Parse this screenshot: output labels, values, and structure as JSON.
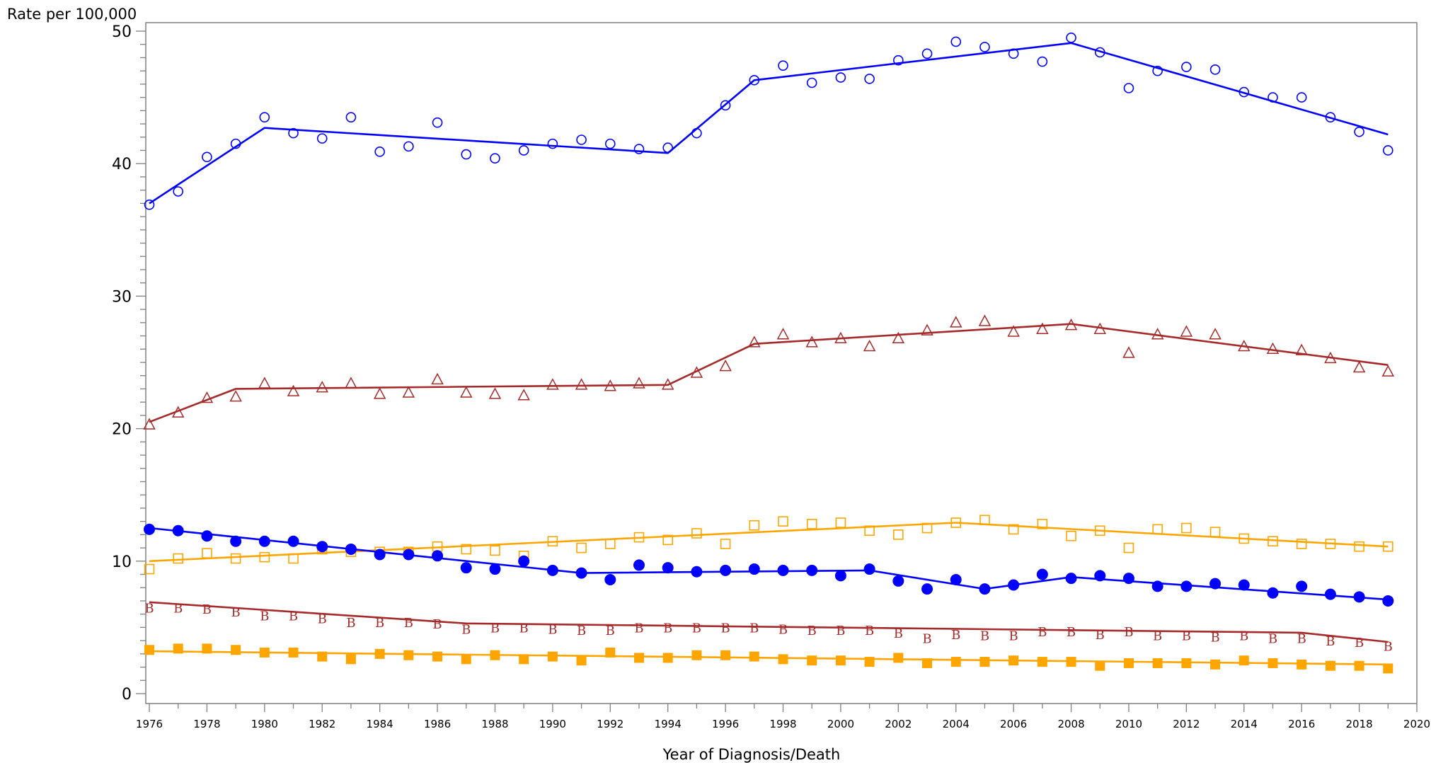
{
  "chart_data": {
    "type": "line",
    "title": "",
    "ylabel": "Rate per 100,000",
    "xlabel": "Year of Diagnosis/Death",
    "xlim": [
      1976,
      2020
    ],
    "ylim": [
      0,
      50
    ],
    "x_ticks": [
      1976,
      1978,
      1980,
      1982,
      1984,
      1986,
      1988,
      1990,
      1992,
      1994,
      1996,
      1998,
      2000,
      2002,
      2004,
      2006,
      2008,
      2010,
      2012,
      2014,
      2016,
      2018,
      2020
    ],
    "y_ticks": [
      0,
      10,
      20,
      30,
      40,
      50
    ],
    "x": [
      1976,
      1977,
      1978,
      1979,
      1980,
      1981,
      1982,
      1983,
      1984,
      1985,
      1986,
      1987,
      1988,
      1989,
      1990,
      1991,
      1992,
      1993,
      1994,
      1995,
      1996,
      1997,
      1998,
      1999,
      2000,
      2001,
      2002,
      2003,
      2004,
      2005,
      2006,
      2007,
      2008,
      2009,
      2010,
      2011,
      2012,
      2013,
      2014,
      2015,
      2016,
      2017,
      2018,
      2019
    ],
    "grid": false,
    "legend": "none",
    "series": [
      {
        "color": "#0000ff",
        "marker": "circle-open",
        "observed": [
          36.9,
          37.9,
          40.5,
          41.5,
          43.5,
          42.3,
          41.9,
          43.5,
          40.9,
          41.3,
          43.1,
          40.7,
          40.4,
          41.0,
          41.5,
          41.8,
          41.5,
          41.1,
          41.2,
          42.3,
          44.4,
          46.3,
          47.4,
          46.1,
          46.5,
          46.4,
          47.8,
          48.3,
          49.2,
          48.8,
          48.3,
          47.7,
          49.5,
          48.4,
          45.7,
          47.0,
          47.3,
          47.1,
          45.4,
          45.0,
          45.0,
          43.5,
          42.4,
          41.0
        ],
        "trend": [
          [
            1976,
            37.0
          ],
          [
            1980,
            42.7
          ],
          [
            1994,
            40.8
          ],
          [
            1997,
            46.3
          ],
          [
            2008,
            49.1
          ],
          [
            2019,
            42.2
          ]
        ]
      },
      {
        "color": "#a52a2a",
        "marker": "triangle-open",
        "observed": [
          20.3,
          21.2,
          22.3,
          22.4,
          23.4,
          22.8,
          23.1,
          23.4,
          22.6,
          22.7,
          23.7,
          22.7,
          22.6,
          22.5,
          23.3,
          23.3,
          23.2,
          23.4,
          23.3,
          24.2,
          24.7,
          26.5,
          27.1,
          26.5,
          26.8,
          26.2,
          26.8,
          27.4,
          28.0,
          28.1,
          27.3,
          27.5,
          27.8,
          27.5,
          25.7,
          27.1,
          27.3,
          27.1,
          26.2,
          26.0,
          25.9,
          25.3,
          24.6,
          24.3
        ],
        "trend": [
          [
            1976,
            20.5
          ],
          [
            1979,
            23.0
          ],
          [
            1994,
            23.3
          ],
          [
            1997,
            26.4
          ],
          [
            2008,
            27.9
          ],
          [
            2019,
            24.8
          ]
        ]
      },
      {
        "color": "#ffa500",
        "marker": "square-open",
        "observed": [
          9.4,
          10.2,
          10.6,
          10.2,
          10.3,
          10.2,
          10.9,
          10.7,
          10.7,
          10.7,
          11.1,
          10.9,
          10.8,
          10.4,
          11.5,
          11.0,
          11.3,
          11.8,
          11.6,
          12.1,
          11.3,
          12.7,
          13.0,
          12.8,
          12.9,
          12.3,
          12.0,
          12.5,
          12.9,
          13.1,
          12.4,
          12.8,
          11.9,
          12.3,
          11.0,
          12.4,
          12.5,
          12.2,
          11.7,
          11.5,
          11.3,
          11.3,
          11.1,
          11.1
        ],
        "trend": [
          [
            1976,
            10.0
          ],
          [
            2004,
            12.9
          ],
          [
            2019,
            11.1
          ]
        ]
      },
      {
        "color": "#0000ff",
        "marker": "circle-filled",
        "observed": [
          12.4,
          12.3,
          11.9,
          11.5,
          11.5,
          11.5,
          11.1,
          10.9,
          10.5,
          10.5,
          10.4,
          9.5,
          9.4,
          10.0,
          9.3,
          9.1,
          8.6,
          9.7,
          9.5,
          9.2,
          9.3,
          9.4,
          9.3,
          9.3,
          8.9,
          9.4,
          8.5,
          7.9,
          8.6,
          7.9,
          8.2,
          9.0,
          8.7,
          8.9,
          8.7,
          8.1,
          8.1,
          8.3,
          8.2,
          7.6,
          8.1,
          7.5,
          7.3,
          7.0
        ],
        "trend": [
          [
            1976,
            12.5
          ],
          [
            1991,
            9.1
          ],
          [
            2001,
            9.3
          ],
          [
            2005,
            7.9
          ],
          [
            2008,
            8.8
          ],
          [
            2019,
            7.1
          ]
        ]
      },
      {
        "color": "#a52a2a",
        "marker": "B",
        "observed": [
          6.5,
          6.5,
          6.4,
          6.2,
          5.9,
          5.9,
          5.7,
          5.4,
          5.4,
          5.4,
          5.3,
          4.9,
          5.0,
          5.0,
          4.9,
          4.8,
          4.8,
          5.0,
          5.0,
          5.0,
          5.0,
          5.0,
          4.9,
          4.8,
          4.8,
          4.8,
          4.6,
          4.2,
          4.5,
          4.4,
          4.4,
          4.7,
          4.7,
          4.5,
          4.7,
          4.4,
          4.4,
          4.3,
          4.4,
          4.2,
          4.2,
          4.0,
          3.9,
          3.6
        ],
        "trend": [
          [
            1976,
            6.9
          ],
          [
            1987,
            5.3
          ],
          [
            2016,
            4.6
          ],
          [
            2019,
            3.9
          ]
        ]
      },
      {
        "color": "#ffa500",
        "marker": "square-filled",
        "observed": [
          3.3,
          3.4,
          3.4,
          3.3,
          3.1,
          3.1,
          2.8,
          2.6,
          3.0,
          2.9,
          2.8,
          2.6,
          2.9,
          2.6,
          2.8,
          2.5,
          3.1,
          2.7,
          2.7,
          2.9,
          2.9,
          2.8,
          2.6,
          2.5,
          2.5,
          2.4,
          2.7,
          2.3,
          2.4,
          2.4,
          2.5,
          2.4,
          2.4,
          2.1,
          2.3,
          2.3,
          2.3,
          2.2,
          2.5,
          2.3,
          2.2,
          2.1,
          2.1,
          1.9
        ],
        "trend": [
          [
            1976,
            3.2
          ],
          [
            2019,
            2.2
          ]
        ]
      }
    ]
  }
}
